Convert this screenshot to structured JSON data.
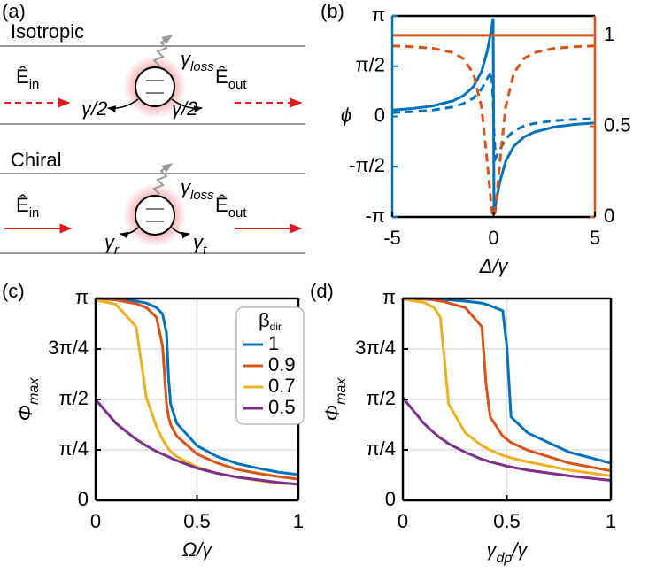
{
  "diagram": {
    "label": "(a)",
    "isotropic": {
      "title": "Isotropic",
      "input": [
        {
          "text": "Ê"
        },
        {
          "text": "in",
          "sub": true
        }
      ],
      "output": [
        {
          "text": "Ê"
        },
        {
          "text": "out",
          "sub": true
        }
      ],
      "loss": [
        {
          "text": "γ"
        },
        {
          "text": "loss",
          "sub": true
        }
      ],
      "left_rate": "γ/2",
      "right_rate": "γ/2"
    },
    "chiral": {
      "title": "Chiral",
      "input": [
        {
          "text": "Ê"
        },
        {
          "text": "in",
          "sub": true
        }
      ],
      "output": [
        {
          "text": "Ê"
        },
        {
          "text": "out",
          "sub": true
        }
      ],
      "loss": [
        {
          "text": "γ"
        },
        {
          "text": "loss",
          "sub": true
        }
      ],
      "left_rate": [
        {
          "text": "γ"
        },
        {
          "text": "r",
          "sub": true
        }
      ],
      "right_rate": [
        {
          "text": "γ"
        },
        {
          "text": "t",
          "sub": true
        }
      ]
    }
  },
  "chart_data": [
    {
      "type": "line",
      "label": "(b)",
      "xlabel": "Δ/γ",
      "ylabel": "ϕ",
      "x": [
        -5,
        -4,
        -3,
        -2,
        -1.5,
        -1,
        -0.6,
        -0.3,
        -0.1,
        -0.02,
        0.02,
        0.1,
        0.3,
        0.6,
        1,
        1.5,
        2,
        3,
        4,
        5
      ],
      "xlim": [
        -5,
        5
      ],
      "xticks": [
        -5,
        0,
        5
      ],
      "ylim": [
        -3.1416,
        3.1416
      ],
      "yticks": [
        {
          "value": -3.1416,
          "label": "-π"
        },
        {
          "value": -1.5708,
          "label": "-π/2"
        },
        0,
        {
          "value": 1.5708,
          "label": "π/2"
        },
        {
          "value": 3.1416,
          "label": "π"
        }
      ],
      "y2lim": [
        0,
        1.107
      ],
      "y2ticks": [
        0,
        0.5,
        1
      ],
      "y_axis_color": "#0072bd",
      "y2_axis_color": "#d95319",
      "grid": false,
      "series": [
        {
          "color": "#0072bd",
          "dash": false,
          "values": [
            0.199,
            0.249,
            0.33,
            0.49,
            0.644,
            0.927,
            1.395,
            2.061,
            2.747,
            3.062,
            -3.062,
            -2.747,
            -2.061,
            -1.395,
            -0.927,
            -0.644,
            -0.49,
            -0.33,
            -0.249,
            -0.199
          ]
        },
        {
          "color": "#0072bd",
          "dash": true,
          "values": [
            0.12,
            0.15,
            0.2,
            0.3,
            0.4,
            0.57,
            0.85,
            1.2,
            1.4,
            0.5,
            -0.5,
            -1.3,
            -1.05,
            -0.7,
            -0.45,
            -0.3,
            -0.22,
            -0.13,
            -0.09,
            -0.07
          ]
        },
        {
          "color": "#d95319",
          "dash": false,
          "axis": "y2",
          "values": [
            1,
            1,
            1,
            1,
            1,
            1,
            1,
            1,
            1,
            1,
            1,
            1,
            1,
            1,
            1,
            1,
            1,
            1,
            1,
            1
          ]
        },
        {
          "color": "#d95319",
          "dash": true,
          "axis": "y2",
          "values": [
            0.942,
            0.938,
            0.929,
            0.905,
            0.873,
            0.792,
            0.608,
            0.292,
            0.045,
            0.002,
            0.002,
            0.045,
            0.292,
            0.608,
            0.792,
            0.873,
            0.905,
            0.929,
            0.938,
            0.942
          ]
        }
      ]
    },
    {
      "type": "line",
      "label": "(c)",
      "xlabel": "Ω/γ",
      "ylabel": [
        {
          "text": "Φ"
        },
        {
          "text": "max",
          "sub": true
        }
      ],
      "x": [
        0,
        0.1,
        0.2,
        0.25,
        0.3,
        0.33,
        0.35,
        0.36,
        0.37,
        0.4,
        0.5,
        0.6,
        0.7,
        0.8,
        0.9,
        1
      ],
      "xlim": [
        0,
        1
      ],
      "xticks": [
        0,
        0.5,
        1
      ],
      "ylim": [
        0,
        3.1416
      ],
      "yticks": [
        0,
        {
          "value": 0.7854,
          "label": "π/4"
        },
        {
          "value": 1.5708,
          "label": "π/2"
        },
        {
          "value": 2.3562,
          "label": "3π/4"
        },
        {
          "value": 3.1416,
          "label": "π"
        }
      ],
      "grid": true,
      "legend": "upper right",
      "legend_title": [
        {
          "text": "β"
        },
        {
          "text": "dir",
          "sub": true
        }
      ],
      "series": [
        {
          "name": "1",
          "color": "#0072bd",
          "values": [
            3.14,
            3.13,
            3.1,
            3.07,
            3.0,
            2.9,
            2.6,
            1.9,
            1.5,
            1.2,
            0.85,
            0.68,
            0.57,
            0.5,
            0.44,
            0.4
          ]
        },
        {
          "name": "0.9",
          "color": "#d95319",
          "values": [
            3.14,
            3.12,
            3.06,
            3.0,
            2.85,
            2.4,
            1.5,
            1.3,
            1.18,
            1.0,
            0.72,
            0.58,
            0.48,
            0.42,
            0.37,
            0.33
          ]
        },
        {
          "name": "0.7",
          "color": "#edb120",
          "values": [
            3.12,
            3.05,
            2.7,
            1.6,
            1.15,
            0.95,
            0.85,
            0.8,
            0.76,
            0.68,
            0.52,
            0.42,
            0.36,
            0.31,
            0.27,
            0.25
          ]
        },
        {
          "name": "0.5",
          "color": "#7e2f8e",
          "values": [
            1.57,
            1.2,
            0.95,
            0.85,
            0.76,
            0.72,
            0.69,
            0.68,
            0.66,
            0.62,
            0.5,
            0.42,
            0.36,
            0.32,
            0.28,
            0.25
          ]
        }
      ]
    },
    {
      "type": "line",
      "label": "(d)",
      "xlabel": [
        {
          "text": "γ"
        },
        {
          "text": "dp",
          "sub": true
        },
        {
          "text": "/γ"
        }
      ],
      "ylabel": [
        {
          "text": "Φ"
        },
        {
          "text": "max",
          "sub": true
        }
      ],
      "x": [
        0,
        0.1,
        0.15,
        0.18,
        0.2,
        0.22,
        0.3,
        0.38,
        0.4,
        0.42,
        0.48,
        0.5,
        0.52,
        0.6,
        0.8,
        1
      ],
      "xlim": [
        0,
        1
      ],
      "xticks": [
        0,
        0.5,
        1
      ],
      "ylim": [
        0,
        3.1416
      ],
      "yticks": [
        0,
        {
          "value": 0.7854,
          "label": "π/4"
        },
        {
          "value": 1.5708,
          "label": "π/2"
        },
        {
          "value": 2.3562,
          "label": "3π/4"
        },
        {
          "value": 3.1416,
          "label": "π"
        }
      ],
      "grid": true,
      "series": [
        {
          "color": "#0072bd",
          "values": [
            3.14,
            3.14,
            3.13,
            3.13,
            3.12,
            3.12,
            3.1,
            3.07,
            3.05,
            3.03,
            2.95,
            2.4,
            1.3,
            1.05,
            0.75,
            0.58
          ]
        },
        {
          "color": "#d95319",
          "values": [
            3.14,
            3.13,
            3.12,
            3.1,
            3.09,
            3.07,
            3.0,
            2.7,
            1.8,
            1.3,
            1.0,
            0.95,
            0.9,
            0.78,
            0.58,
            0.46
          ]
        },
        {
          "color": "#edb120",
          "values": [
            3.13,
            3.08,
            3.0,
            2.85,
            2.2,
            1.5,
            1.05,
            0.85,
            0.82,
            0.78,
            0.7,
            0.68,
            0.66,
            0.6,
            0.47,
            0.38
          ]
        },
        {
          "color": "#7e2f8e",
          "values": [
            1.6,
            1.2,
            1.05,
            0.97,
            0.93,
            0.88,
            0.75,
            0.64,
            0.62,
            0.6,
            0.55,
            0.53,
            0.52,
            0.47,
            0.38,
            0.31
          ]
        }
      ]
    }
  ]
}
